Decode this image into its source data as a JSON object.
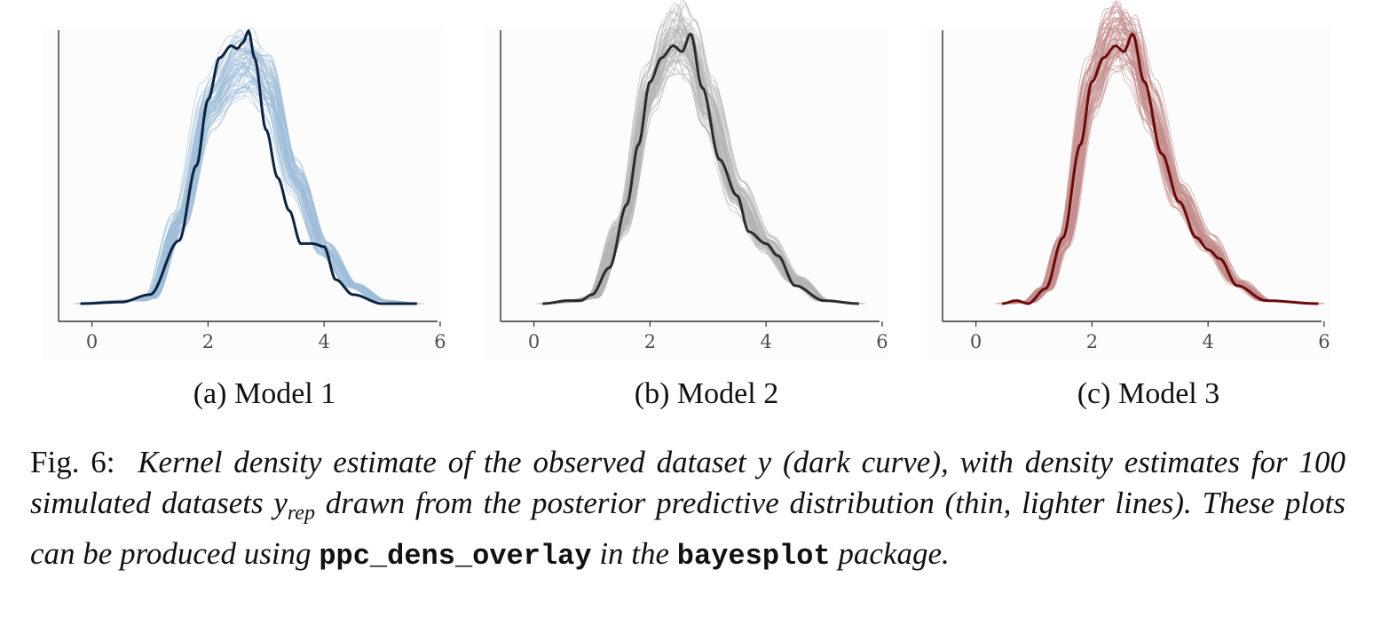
{
  "figure": {
    "panels": [
      {
        "caption": "(a) Model 1",
        "accent": "#0d2240",
        "rep_color": "#9ebdd9"
      },
      {
        "caption": "(b) Model 2",
        "accent": "#2b2b2b",
        "rep_color": "#b3b3b3"
      },
      {
        "caption": "(c) Model 3",
        "accent": "#6b0a0a",
        "rep_color": "#c28c8c"
      }
    ],
    "caption": {
      "label": "Fig. 6:",
      "text_1": "Kernel density estimate of the observed dataset y (dark curve), with density estimates for 100 simulated datasets y",
      "subscript": "rep",
      "text_2": " drawn from the posterior predictive distribution (thin, lighter lines). These plots can be produced using ",
      "code_1": "ppc_dens_overlay",
      "text_3": " in the ",
      "code_2": "bayesplot",
      "text_4": " package."
    }
  },
  "chart_data": [
    {
      "type": "line",
      "xlim": [
        -0.3,
        6.2
      ],
      "ylim": [
        0,
        0.9
      ],
      "x_ticks": [
        "0",
        "2",
        "4",
        "6"
      ],
      "y_ticks": [],
      "grid": false,
      "series": [
        {
          "x": [
            -0.2,
            0.5,
            1.0,
            1.5,
            1.8,
            2.0,
            2.2,
            2.4,
            2.5,
            2.6,
            2.7,
            2.8,
            3.0,
            3.2,
            3.4,
            3.6,
            3.8,
            4.0,
            4.2,
            4.5,
            5.0,
            5.6
          ],
          "y": [
            0.0,
            0.005,
            0.03,
            0.21,
            0.46,
            0.68,
            0.82,
            0.86,
            0.85,
            0.87,
            0.91,
            0.82,
            0.58,
            0.42,
            0.31,
            0.2,
            0.2,
            0.19,
            0.08,
            0.03,
            0.0,
            0.0
          ]
        },
        {
          "x": [
            -0.2,
            0.5,
            0.8,
            1.0,
            1.5,
            2.0,
            2.5,
            2.7,
            3.0,
            3.5,
            4.0,
            4.5,
            5.0,
            5.6
          ],
          "y": [
            0.0,
            0.01,
            0.01,
            0.02,
            0.28,
            0.66,
            0.8,
            0.81,
            0.74,
            0.42,
            0.18,
            0.06,
            0.01,
            0.0
          ]
        }
      ]
    },
    {
      "type": "line",
      "xlim": [
        -0.3,
        6.2
      ],
      "ylim": [
        0,
        0.9
      ],
      "x_ticks": [
        "0",
        "2",
        "4",
        "6"
      ],
      "y_ticks": [],
      "grid": false,
      "series": [
        {
          "x": [
            0.15,
            0.6,
            0.8,
            1.0,
            1.3,
            1.6,
            1.8,
            2.0,
            2.2,
            2.4,
            2.55,
            2.7,
            2.9,
            3.2,
            3.5,
            3.7,
            4.0,
            4.2,
            4.5,
            5.0,
            5.6
          ],
          "y": [
            0.0,
            0.01,
            0.01,
            0.03,
            0.12,
            0.33,
            0.53,
            0.74,
            0.82,
            0.86,
            0.84,
            0.9,
            0.72,
            0.48,
            0.36,
            0.24,
            0.2,
            0.16,
            0.06,
            0.01,
            0.0
          ]
        },
        {
          "x": [
            0.15,
            0.6,
            1.0,
            1.5,
            2.0,
            2.3,
            2.5,
            2.7,
            3.0,
            3.5,
            4.0,
            4.5,
            5.0,
            5.6
          ],
          "y": [
            0.0,
            0.005,
            0.02,
            0.25,
            0.7,
            0.85,
            0.88,
            0.84,
            0.66,
            0.36,
            0.2,
            0.08,
            0.01,
            0.0
          ]
        }
      ]
    },
    {
      "type": "line",
      "xlim": [
        -0.3,
        6.2
      ],
      "ylim": [
        0,
        0.9
      ],
      "x_ticks": [
        "0",
        "2",
        "4",
        "6"
      ],
      "y_ticks": [],
      "grid": false,
      "series": [
        {
          "x": [
            0.45,
            0.7,
            0.9,
            1.2,
            1.5,
            1.8,
            2.0,
            2.2,
            2.4,
            2.55,
            2.7,
            2.9,
            3.2,
            3.5,
            3.8,
            4.0,
            4.2,
            4.5,
            5.0,
            5.9
          ],
          "y": [
            0.0,
            0.01,
            0.0,
            0.05,
            0.22,
            0.53,
            0.74,
            0.82,
            0.86,
            0.84,
            0.9,
            0.74,
            0.5,
            0.34,
            0.22,
            0.18,
            0.15,
            0.06,
            0.01,
            0.0
          ]
        },
        {
          "x": [
            0.45,
            0.9,
            1.2,
            1.5,
            2.0,
            2.3,
            2.5,
            2.7,
            3.0,
            3.5,
            4.0,
            4.5,
            5.0,
            5.9
          ],
          "y": [
            0.0,
            0.005,
            0.05,
            0.2,
            0.72,
            0.87,
            0.9,
            0.85,
            0.65,
            0.36,
            0.2,
            0.07,
            0.01,
            0.0
          ]
        }
      ]
    }
  ]
}
